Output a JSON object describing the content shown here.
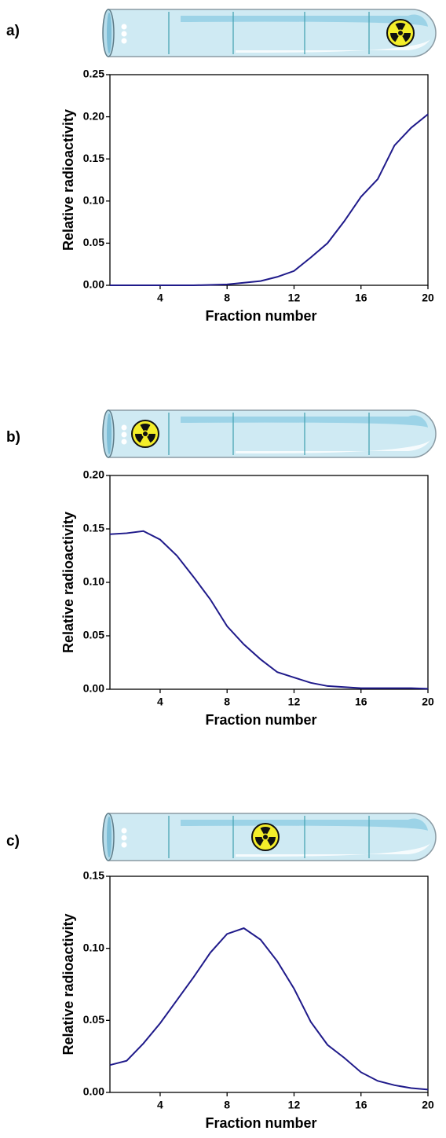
{
  "chart_data": [
    {
      "type": "line",
      "label": "a)",
      "x_label": "Fraction number",
      "y_label": "Relative radioactivity",
      "color": "#1f1a8a",
      "x": [
        1,
        2,
        3,
        4,
        5,
        6,
        7,
        8,
        9,
        10,
        11,
        12,
        13,
        14,
        15,
        16,
        17,
        18,
        19,
        20
      ],
      "values": [
        0,
        0,
        0,
        0,
        0,
        0,
        0.0005,
        0.001,
        0.003,
        0.005,
        0.01,
        0.017,
        0.033,
        0.05,
        0.076,
        0.105,
        0.126,
        0.166,
        0.187,
        0.203
      ],
      "xlim": [
        1,
        20
      ],
      "xticks": [
        4,
        8,
        12,
        16,
        20
      ],
      "ylim": [
        0,
        0.25
      ],
      "yticks": [
        {
          "value": 0,
          "label": "0.00"
        },
        {
          "value": 0.05,
          "label": "0.05"
        },
        {
          "value": 0.1,
          "label": "0.10"
        },
        {
          "value": 0.15,
          "label": "0.15"
        },
        {
          "value": 0.2,
          "label": "0.20"
        },
        {
          "value": 0.25,
          "label": "0.25"
        }
      ]
    },
    {
      "type": "line",
      "label": "b)",
      "x_label": "Fraction number",
      "y_label": "Relative radioactivity",
      "color": "#1f1a8a",
      "x": [
        1,
        2,
        3,
        4,
        5,
        6,
        7,
        8,
        9,
        10,
        11,
        12,
        13,
        14,
        15,
        16,
        17,
        18,
        19,
        20
      ],
      "values": [
        0.145,
        0.146,
        0.148,
        0.14,
        0.125,
        0.105,
        0.084,
        0.059,
        0.042,
        0.028,
        0.016,
        0.011,
        0.006,
        0.003,
        0.002,
        0.001,
        0.001,
        0.001,
        0.001,
        0.0005
      ],
      "xlim": [
        1,
        20
      ],
      "xticks": [
        4,
        8,
        12,
        16,
        20
      ],
      "ylim": [
        0,
        0.2
      ],
      "yticks": [
        {
          "value": 0,
          "label": "0.00"
        },
        {
          "value": 0.05,
          "label": "0.05"
        },
        {
          "value": 0.1,
          "label": "0.10"
        },
        {
          "value": 0.15,
          "label": "0.15"
        },
        {
          "value": 0.2,
          "label": "0.20"
        }
      ]
    },
    {
      "type": "line",
      "label": "c)",
      "x_label": "Fraction number",
      "y_label": "Relative radioactivity",
      "color": "#1f1a8a",
      "x": [
        1,
        2,
        3,
        4,
        5,
        6,
        7,
        8,
        9,
        10,
        11,
        12,
        13,
        14,
        15,
        16,
        17,
        18,
        19,
        20
      ],
      "values": [
        0.019,
        0.022,
        0.034,
        0.048,
        0.064,
        0.08,
        0.097,
        0.11,
        0.114,
        0.106,
        0.091,
        0.072,
        0.049,
        0.033,
        0.024,
        0.014,
        0.008,
        0.005,
        0.003,
        0.002
      ],
      "xlim": [
        1,
        20
      ],
      "xticks": [
        4,
        8,
        12,
        16,
        20
      ],
      "ylim": [
        0,
        0.15
      ],
      "yticks": [
        {
          "value": 0,
          "label": "0.00"
        },
        {
          "value": 0.05,
          "label": "0.05"
        },
        {
          "value": 0.1,
          "label": "0.10"
        },
        {
          "value": 0.15,
          "label": "0.15"
        }
      ]
    }
  ]
}
